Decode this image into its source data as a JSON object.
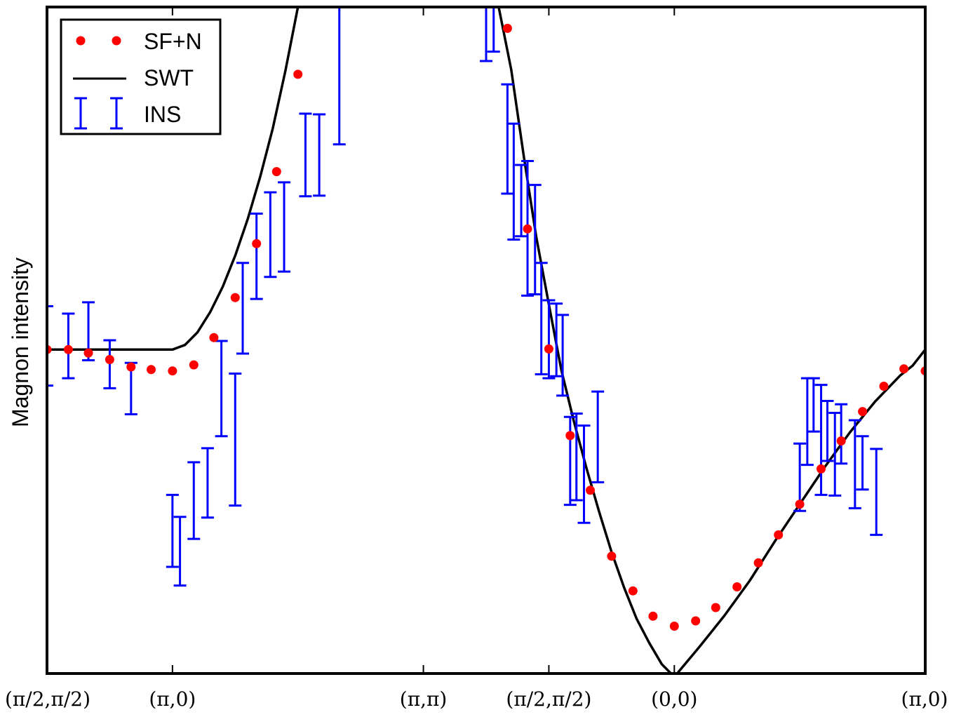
{
  "chart_data": {
    "type": "scatter",
    "title": "",
    "xlabel": "",
    "ylabel": "Magnon intensity",
    "xlim": [
      0,
      7
    ],
    "ylim": [
      0,
      1
    ],
    "grid": false,
    "legend_position": "top-left",
    "x_ticks": [
      {
        "value": 0,
        "label": "(π/2,π/2)"
      },
      {
        "value": 1,
        "label": "(π,0)"
      },
      {
        "value": 3,
        "label": "(π,π)"
      },
      {
        "value": 4,
        "label": "(π/2,π/2)"
      },
      {
        "value": 5,
        "label": "(0,0)"
      },
      {
        "value": 7,
        "label": "(π,0)"
      }
    ],
    "series": [
      {
        "name": "SF+N",
        "style": "red-dots",
        "color": "#ff0000",
        "points": [
          [
            0.0,
            0.486
          ],
          [
            0.17,
            0.486
          ],
          [
            0.33,
            0.481
          ],
          [
            0.5,
            0.471
          ],
          [
            0.67,
            0.46
          ],
          [
            0.83,
            0.456
          ],
          [
            1.0,
            0.454
          ],
          [
            1.17,
            0.463
          ],
          [
            1.33,
            0.504
          ],
          [
            1.5,
            0.564
          ],
          [
            1.67,
            0.645
          ],
          [
            1.83,
            0.753
          ],
          [
            2.0,
            0.899
          ],
          [
            3.67,
            0.968
          ],
          [
            3.83,
            0.667
          ],
          [
            4.0,
            0.487
          ],
          [
            4.17,
            0.357
          ],
          [
            4.33,
            0.275
          ],
          [
            4.5,
            0.176
          ],
          [
            4.67,
            0.124
          ],
          [
            4.83,
            0.086
          ],
          [
            5.0,
            0.071
          ],
          [
            5.17,
            0.079
          ],
          [
            5.33,
            0.099
          ],
          [
            5.5,
            0.13
          ],
          [
            5.67,
            0.166
          ],
          [
            5.83,
            0.208
          ],
          [
            6.0,
            0.254
          ],
          [
            6.17,
            0.307
          ],
          [
            6.33,
            0.349
          ],
          [
            6.5,
            0.393
          ],
          [
            6.67,
            0.431
          ],
          [
            6.83,
            0.457
          ],
          [
            7.0,
            0.454
          ]
        ]
      },
      {
        "name": "SWT",
        "style": "black-line",
        "color": "#000000",
        "curve_segments": [
          [
            [
              0,
              0.486
            ],
            [
              1.0,
              0.486
            ],
            [
              1.1,
              0.493
            ],
            [
              1.2,
              0.512
            ],
            [
              1.3,
              0.542
            ],
            [
              1.4,
              0.58
            ],
            [
              1.5,
              0.627
            ],
            [
              1.6,
              0.682
            ],
            [
              1.7,
              0.746
            ],
            [
              1.8,
              0.818
            ],
            [
              1.9,
              0.904
            ],
            [
              2.0,
              1.0
            ],
            [
              2.1,
              1.11
            ]
          ],
          [
            [
              3.55,
              1.03
            ],
            [
              3.6,
              1.0
            ],
            [
              3.7,
              0.906
            ],
            [
              3.8,
              0.776
            ],
            [
              3.9,
              0.655
            ],
            [
              4.0,
              0.554
            ],
            [
              4.1,
              0.455
            ],
            [
              4.2,
              0.378
            ],
            [
              4.3,
              0.308
            ],
            [
              4.4,
              0.243
            ],
            [
              4.5,
              0.182
            ],
            [
              4.6,
              0.129
            ],
            [
              4.7,
              0.082
            ],
            [
              4.8,
              0.046
            ],
            [
              4.9,
              0.014
            ],
            [
              5.0,
              -0.005
            ],
            [
              5.2,
              0.04
            ],
            [
              5.4,
              0.087
            ],
            [
              5.6,
              0.139
            ],
            [
              5.8,
              0.198
            ],
            [
              6.0,
              0.254
            ],
            [
              6.2,
              0.31
            ],
            [
              6.4,
              0.362
            ],
            [
              6.6,
              0.408
            ],
            [
              6.8,
              0.447
            ],
            [
              6.9,
              0.462
            ],
            [
              7.0,
              0.486
            ]
          ]
        ]
      },
      {
        "name": "INS",
        "style": "blue-errorbars",
        "color": "#0000ff",
        "error_bars": [
          [
            0.0,
            0.432,
            0.551
          ],
          [
            0.17,
            0.443,
            0.54
          ],
          [
            0.33,
            0.47,
            0.557
          ],
          [
            0.5,
            0.428,
            0.5
          ],
          [
            0.67,
            0.389,
            0.466
          ],
          [
            1.0,
            0.16,
            0.268
          ],
          [
            1.06,
            0.132,
            0.235
          ],
          [
            1.17,
            0.202,
            0.317
          ],
          [
            1.28,
            0.234,
            0.338
          ],
          [
            1.39,
            0.356,
            0.499
          ],
          [
            1.5,
            0.252,
            0.45
          ],
          [
            1.56,
            0.48,
            0.616
          ],
          [
            1.67,
            0.562,
            0.69
          ],
          [
            1.78,
            0.595,
            0.722
          ],
          [
            1.89,
            0.603,
            0.737
          ],
          [
            2.06,
            0.716,
            0.84
          ],
          [
            2.17,
            0.717,
            0.839
          ],
          [
            2.33,
            0.794,
            1.0
          ],
          [
            3.5,
            0.919,
            1.0
          ],
          [
            3.56,
            0.933,
            1.0
          ],
          [
            3.67,
            0.72,
            0.884
          ],
          [
            3.72,
            0.651,
            0.825
          ],
          [
            3.78,
            0.656,
            0.763
          ],
          [
            3.83,
            0.567,
            0.769
          ],
          [
            3.89,
            0.569,
            0.733
          ],
          [
            3.94,
            0.449,
            0.616
          ],
          [
            4.0,
            0.443,
            0.56
          ],
          [
            4.06,
            0.446,
            0.555
          ],
          [
            4.11,
            0.417,
            0.538
          ],
          [
            4.17,
            0.253,
            0.385
          ],
          [
            4.22,
            0.26,
            0.39
          ],
          [
            4.28,
            0.226,
            0.372
          ],
          [
            4.39,
            0.287,
            0.423
          ],
          [
            6.0,
            0.244,
            0.345
          ],
          [
            6.06,
            0.313,
            0.443
          ],
          [
            6.11,
            0.363,
            0.443
          ],
          [
            6.17,
            0.268,
            0.433
          ],
          [
            6.22,
            0.319,
            0.409
          ],
          [
            6.28,
            0.267,
            0.391
          ],
          [
            6.33,
            0.315,
            0.404
          ],
          [
            6.44,
            0.248,
            0.38
          ],
          [
            6.5,
            0.276,
            0.356
          ],
          [
            6.61,
            0.208,
            0.337
          ]
        ]
      }
    ],
    "legend": [
      {
        "label": "SF+N",
        "marker": "dots"
      },
      {
        "label": "SWT",
        "marker": "line"
      },
      {
        "label": "INS",
        "marker": "errorbar"
      }
    ]
  }
}
